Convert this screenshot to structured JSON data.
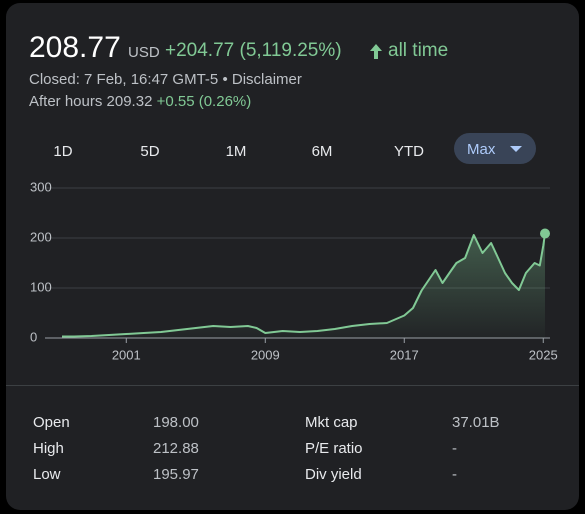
{
  "header": {
    "price": "208.77",
    "currency": "USD",
    "change": "+204.77 (5,119.25%)",
    "period": "all time",
    "closed": "Closed: 7 Feb, 16:47 GMT-5",
    "separator": "•",
    "disclaimer": "Disclaimer",
    "after_hours_label": "After hours 209.32",
    "after_hours_change": "+0.55 (0.26%)"
  },
  "ranges": [
    "1D",
    "5D",
    "1M",
    "6M",
    "YTD",
    "Max"
  ],
  "selected_range": 5,
  "chart_data": {
    "type": "line",
    "x": [
      1997.3,
      1998,
      1999,
      2000,
      2001,
      2002,
      2003,
      2004,
      2005,
      2006,
      2007,
      2008,
      2008.5,
      2009,
      2010,
      2011,
      2012,
      2013,
      2014,
      2015,
      2016,
      2017,
      2017.5,
      2018,
      2018.8,
      2019.2,
      2019.6,
      2020,
      2020.5,
      2021,
      2021.5,
      2022,
      2022.4,
      2022.8,
      2023.2,
      2023.6,
      2024,
      2024.5,
      2024.8,
      2025,
      2025.1
    ],
    "series": [
      {
        "color": "#81c995",
        "values": [
          3,
          3,
          4,
          6,
          8,
          10,
          12,
          16,
          20,
          24,
          22,
          24,
          20,
          10,
          14,
          12,
          14,
          18,
          24,
          28,
          30,
          45,
          60,
          95,
          136,
          110,
          130,
          150,
          160,
          206,
          170,
          190,
          160,
          130,
          110,
          96,
          130,
          150,
          145,
          185,
          209
        ]
      }
    ],
    "xlim": [
      1997.3,
      2025.1
    ],
    "xticks": [
      2001,
      2009,
      2017,
      2025
    ],
    "ylim": [
      0,
      300
    ],
    "yticks": [
      0,
      100,
      200,
      300
    ],
    "grid": true
  },
  "stats": [
    [
      "Open",
      "198.00"
    ],
    [
      "High",
      "212.88"
    ],
    [
      "Low",
      "195.97"
    ],
    [
      "Mkt cap",
      "37.01B"
    ],
    [
      "P/E ratio",
      "-"
    ],
    [
      "Div yield",
      "-"
    ]
  ]
}
